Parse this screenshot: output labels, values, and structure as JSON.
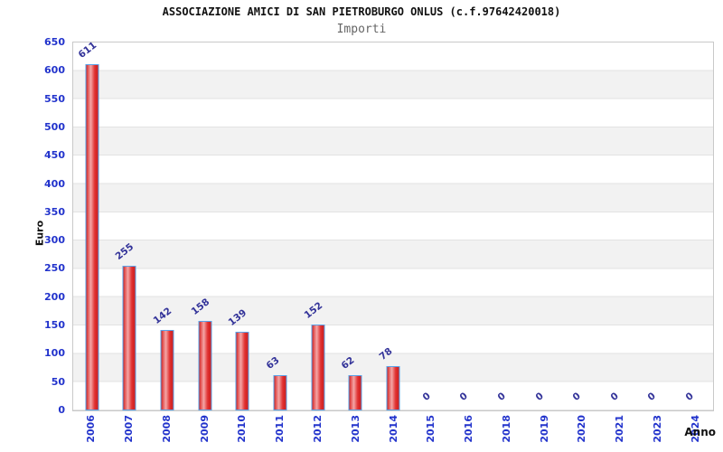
{
  "header": {
    "title": "ASSOCIAZIONE AMICI DI SAN PIETROBURGO ONLUS (c.f.97642420018)",
    "subtitle": "Importi"
  },
  "chart_data": {
    "type": "bar",
    "title": "ASSOCIAZIONE AMICI DI SAN PIETROBURGO ONLUS (c.f.97642420018)",
    "subtitle": "Importi",
    "categories": [
      "2006",
      "2007",
      "2008",
      "2009",
      "2010",
      "2011",
      "2012",
      "2013",
      "2014",
      "2015",
      "2016",
      "2018",
      "2019",
      "2020",
      "2021",
      "2023",
      "2024"
    ],
    "values": [
      611,
      255,
      142,
      158,
      139,
      63,
      152,
      62,
      78,
      0,
      0,
      0,
      0,
      0,
      0,
      0,
      0
    ],
    "xlabel": "Anno",
    "ylabel": "Euro",
    "ylim": [
      0,
      650
    ],
    "ytick_step": 50,
    "yticks": [
      0,
      50,
      100,
      150,
      200,
      250,
      300,
      350,
      400,
      450,
      500,
      550,
      600,
      650
    ],
    "grid": true,
    "legend_position": "none",
    "value_labels_shown": true,
    "colors": {
      "bar_fill_dark": "#cc2020",
      "bar_fill_highlight": "#f4a6a6",
      "bar_border": "#5aa2e8",
      "axis_tick_label": "#2233cc",
      "value_label": "#333399",
      "band_stripe": "#f2f2f2",
      "gridline": "#e2e2e2",
      "plot_border": "#c9c9c9",
      "title_color": "#111111",
      "subtitle_color": "#666666"
    }
  }
}
